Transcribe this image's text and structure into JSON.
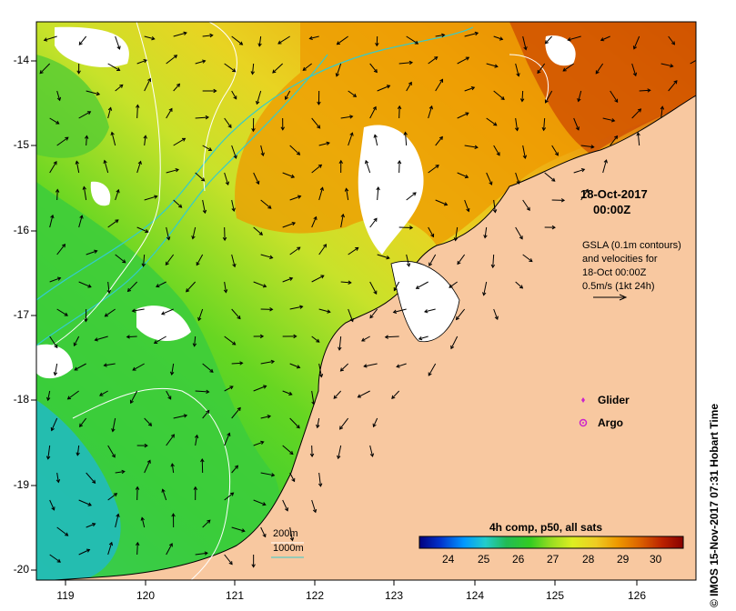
{
  "map": {
    "date_label": "18-Oct-2017",
    "time_label": "00:00Z",
    "legend_lines": [
      "GSLA (0.1m contours)",
      "and velocities for",
      "18-Oct 00:00Z",
      "0.5m/s (1kt 24h)"
    ],
    "markers": [
      {
        "label": "Glider",
        "color": "#cc22cc"
      },
      {
        "label": "Argo",
        "color": "#cc22cc"
      }
    ],
    "depth_labels": [
      "200m",
      "1000m"
    ],
    "colorbar": {
      "title": "4h comp, p50, all sats",
      "ticks": [
        "24",
        "25",
        "26",
        "27",
        "28",
        "29",
        "30"
      ]
    },
    "credit": "IMOS 15-Nov-2017 07:31 Hobart Time",
    "credit_symbol": "©",
    "y_ticks": [
      "-14",
      "-15",
      "-16",
      "-17",
      "-18",
      "-19",
      "-20"
    ],
    "x_ticks": [
      "119",
      "120",
      "121",
      "122",
      "123",
      "124",
      "125",
      "126"
    ],
    "colors": {
      "land": "#f8c8a0",
      "contour_cyan": "#33cccc",
      "contour_white": "#ffffff",
      "arrow": "#000000",
      "palette": [
        "#00007f",
        "#0033cc",
        "#0099ff",
        "#22cccc",
        "#22bb55",
        "#33cc22",
        "#99dd22",
        "#ddee22",
        "#eecc22",
        "#ee9900",
        "#dd6600",
        "#bb2200",
        "#880000"
      ]
    }
  }
}
